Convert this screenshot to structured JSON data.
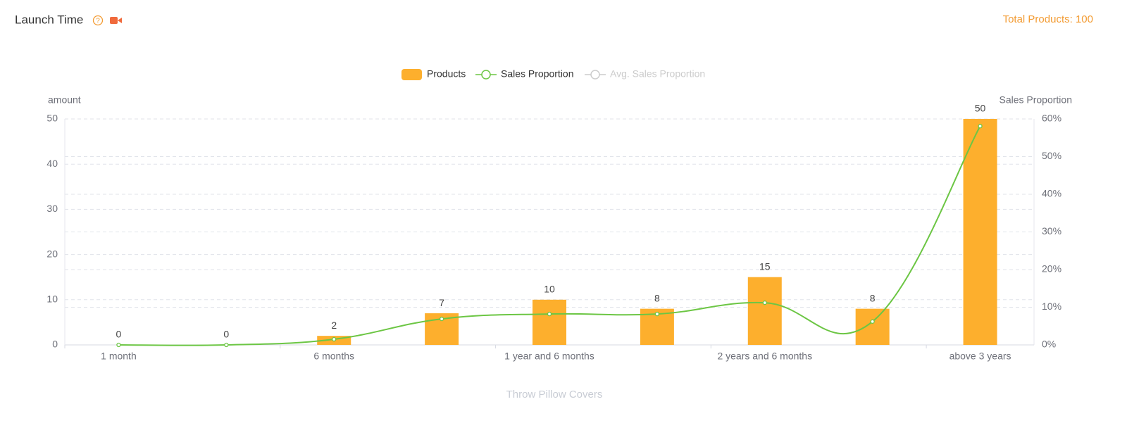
{
  "header": {
    "title": "Launch Time",
    "total": "Total Products: 100"
  },
  "chart_data": {
    "type": "bar",
    "ylabel": "amount",
    "y2label": "Sales Proportion",
    "xlabel": "Throw Pillow Covers",
    "categories": [
      "1 month",
      null,
      "6 months",
      null,
      "1 year and 6 months",
      null,
      "2 years and 6 months",
      null,
      "above 3 years"
    ],
    "series": [
      {
        "name": "Products",
        "type": "bar",
        "color": "#fdaf2d",
        "values": [
          0,
          0,
          2,
          7,
          10,
          8,
          15,
          8,
          50
        ]
      },
      {
        "name": "Sales Proportion",
        "type": "line",
        "axis": "y2",
        "color": "#6cc644",
        "values": [
          0,
          0,
          1.5,
          6.9,
          8.2,
          8.2,
          11.2,
          6.2,
          58.1
        ]
      },
      {
        "name": "Avg. Sales Proportion",
        "type": "line",
        "axis": "y2",
        "color": "#cccccc",
        "hidden": true
      }
    ],
    "ylim": [
      0,
      50
    ],
    "yticks": [
      0,
      10,
      20,
      30,
      40,
      50
    ],
    "y2lim": [
      0,
      60
    ],
    "y2ticks": [
      {
        "value": 0,
        "label": "0%"
      },
      {
        "value": 10,
        "label": "10%"
      },
      {
        "value": 20,
        "label": "20%"
      },
      {
        "value": 30,
        "label": "30%"
      },
      {
        "value": 40,
        "label": "40%"
      },
      {
        "value": 50,
        "label": "50%"
      },
      {
        "value": 60,
        "label": "60%"
      }
    ],
    "grid": true
  }
}
